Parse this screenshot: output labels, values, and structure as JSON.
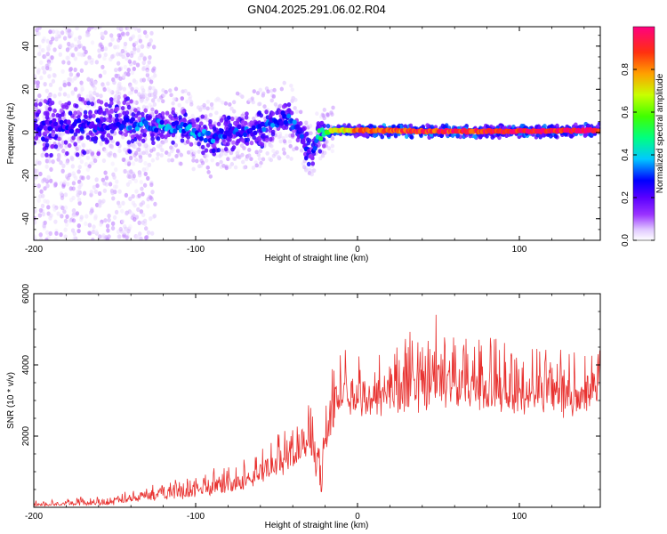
{
  "title": "GN04.2025.291.06.02.R04",
  "colors": {
    "snr_line": "#e8312f",
    "axis": "#000000",
    "background": "#ffffff"
  },
  "chart_data": [
    {
      "type": "heatmap",
      "name": "spectrogram",
      "xlabel": "Height of straight line (km)",
      "ylabel": "Frequency (Hz)",
      "xlim": [
        -200,
        150
      ],
      "ylim": [
        -50,
        49
      ],
      "xticks": [
        -200,
        -100,
        0,
        100
      ],
      "yticks": [
        -40,
        -20,
        0,
        20,
        40
      ],
      "colorbar": {
        "label": "Normalized spectral amplitude",
        "range": [
          0,
          1
        ],
        "ticks": [
          "0.0",
          "0.2",
          "0.4",
          "0.6",
          "0.8"
        ],
        "tick_values": [
          0.0,
          0.2,
          0.4,
          0.6,
          0.8
        ],
        "colormap": [
          "#ffffff",
          "#e0c8ff",
          "#9a33ff",
          "#5a00ff",
          "#0000ff",
          "#00c8ff",
          "#00ff80",
          "#40ff00",
          "#c8ff00",
          "#ffa000",
          "#ff3010",
          "#ff0080"
        ]
      },
      "ridge": [
        {
          "x": -200,
          "f": 3,
          "amp": 0.28
        },
        {
          "x": -175,
          "f": 3,
          "amp": 0.3
        },
        {
          "x": -150,
          "f": 4,
          "amp": 0.32
        },
        {
          "x": -135,
          "f": 4,
          "amp": 0.4
        },
        {
          "x": -120,
          "f": 3,
          "amp": 0.42
        },
        {
          "x": -105,
          "f": 2,
          "amp": 0.42
        },
        {
          "x": -90,
          "f": -3,
          "amp": 0.4
        },
        {
          "x": -75,
          "f": 0,
          "amp": 0.36
        },
        {
          "x": -60,
          "f": 2,
          "amp": 0.34
        },
        {
          "x": -45,
          "f": 7,
          "amp": 0.38
        },
        {
          "x": -38,
          "f": 3,
          "amp": 0.36
        },
        {
          "x": -32,
          "f": -6,
          "amp": 0.32
        },
        {
          "x": -28,
          "f": -10,
          "amp": 0.24
        },
        {
          "x": -25,
          "f": -1,
          "amp": 0.5
        },
        {
          "x": -15,
          "f": 1,
          "amp": 0.7
        },
        {
          "x": 0,
          "f": 1,
          "amp": 0.85
        },
        {
          "x": 50,
          "f": 0.5,
          "amp": 0.92
        },
        {
          "x": 100,
          "f": 0.5,
          "amp": 0.95
        },
        {
          "x": 150,
          "f": 1,
          "amp": 0.95
        }
      ]
    },
    {
      "type": "line",
      "name": "snr",
      "xlabel": "Height of straight line (km)",
      "ylabel": "SNR (10 * v/v)",
      "xlim": [
        -200,
        150
      ],
      "ylim": [
        0,
        6000
      ],
      "xticks": [
        -200,
        -100,
        0,
        100
      ],
      "yticks": [
        2000,
        4000,
        6000
      ],
      "envelope": [
        {
          "x": -200,
          "base": 60,
          "amp": 160
        },
        {
          "x": -150,
          "base": 120,
          "amp": 250
        },
        {
          "x": -130,
          "base": 250,
          "amp": 450
        },
        {
          "x": -100,
          "base": 400,
          "amp": 600
        },
        {
          "x": -80,
          "base": 550,
          "amp": 650
        },
        {
          "x": -60,
          "base": 800,
          "amp": 900
        },
        {
          "x": -40,
          "base": 1300,
          "amp": 1200
        },
        {
          "x": -30,
          "base": 1700,
          "amp": 1400
        },
        {
          "x": -22,
          "base": 700,
          "amp": 2000
        },
        {
          "x": -18,
          "base": 2200,
          "amp": 1500
        },
        {
          "x": -10,
          "base": 3000,
          "amp": 1500
        },
        {
          "x": 0,
          "base": 2900,
          "amp": 1600
        },
        {
          "x": 10,
          "base": 2900,
          "amp": 1700
        },
        {
          "x": 20,
          "base": 3000,
          "amp": 2000
        },
        {
          "x": 40,
          "base": 3200,
          "amp": 2300
        },
        {
          "x": 60,
          "base": 3300,
          "amp": 2300
        },
        {
          "x": 80,
          "base": 3100,
          "amp": 2000
        },
        {
          "x": 100,
          "base": 3000,
          "amp": 1800
        },
        {
          "x": 120,
          "base": 3000,
          "amp": 1700
        },
        {
          "x": 135,
          "base": 2800,
          "amp": 1700
        },
        {
          "x": 150,
          "base": 3300,
          "amp": 1300
        }
      ]
    }
  ]
}
